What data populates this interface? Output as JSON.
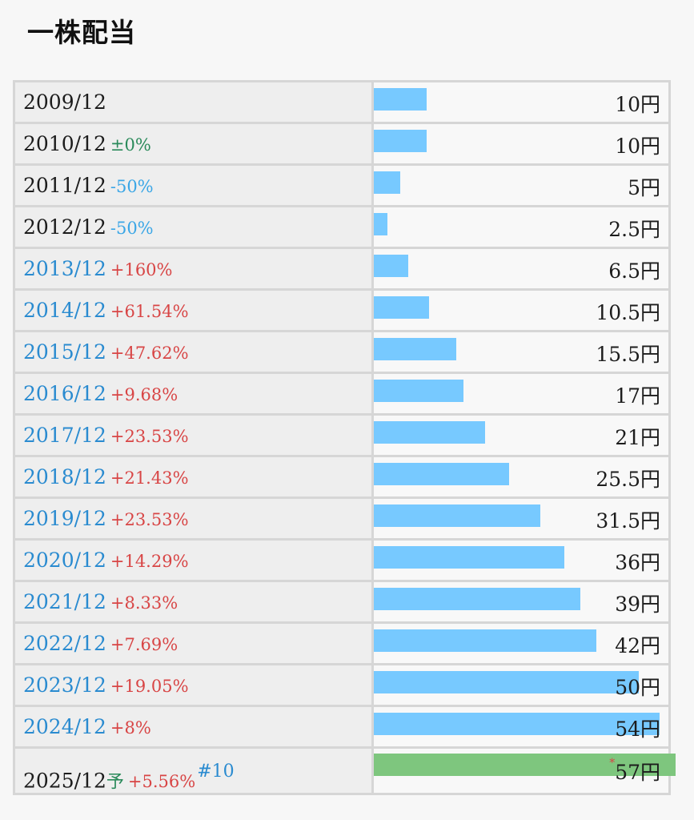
{
  "title": "一株配当",
  "colors": {
    "bar": "#77c9ff",
    "forecast_bar": "#7ec67e",
    "up": "#d84545",
    "down": "#3aa6e6",
    "flat": "#2a8a5a",
    "link": "#2a8bd0"
  },
  "chart_data": {
    "type": "bar",
    "orientation": "horizontal",
    "unit": "円",
    "categories": [
      "2009/12",
      "2010/12",
      "2011/12",
      "2012/12",
      "2013/12",
      "2014/12",
      "2015/12",
      "2016/12",
      "2017/12",
      "2018/12",
      "2019/12",
      "2020/12",
      "2021/12",
      "2022/12",
      "2023/12",
      "2024/12",
      "2025/12"
    ],
    "values": [
      10,
      10,
      5,
      2.5,
      6.5,
      10.5,
      15.5,
      17,
      21,
      25.5,
      31.5,
      36,
      39,
      42,
      50,
      54,
      57
    ],
    "changes": [
      "",
      "±0%",
      "-50%",
      "-50%",
      "+160%",
      "+61.54%",
      "+47.62%",
      "+9.68%",
      "+23.53%",
      "+21.43%",
      "+23.53%",
      "+14.29%",
      "+8.33%",
      "+7.69%",
      "+19.05%",
      "+8%",
      "+5.56%"
    ],
    "xlim": [
      0,
      57
    ]
  },
  "rows": [
    {
      "year": "2009/12",
      "change": "",
      "dir": "none",
      "link": false,
      "value": 10,
      "label": "10円"
    },
    {
      "year": "2010/12",
      "change": "±0%",
      "dir": "flat",
      "link": false,
      "value": 10,
      "label": "10円"
    },
    {
      "year": "2011/12",
      "change": "-50%",
      "dir": "down",
      "link": false,
      "value": 5,
      "label": "5円"
    },
    {
      "year": "2012/12",
      "change": "-50%",
      "dir": "down",
      "link": false,
      "value": 2.5,
      "label": "2.5円"
    },
    {
      "year": "2013/12",
      "change": "+160%",
      "dir": "up",
      "link": true,
      "value": 6.5,
      "label": "6.5円"
    },
    {
      "year": "2014/12",
      "change": "+61.54%",
      "dir": "up",
      "link": true,
      "value": 10.5,
      "label": "10.5円"
    },
    {
      "year": "2015/12",
      "change": "+47.62%",
      "dir": "up",
      "link": true,
      "value": 15.5,
      "label": "15.5円"
    },
    {
      "year": "2016/12",
      "change": "+9.68%",
      "dir": "up",
      "link": true,
      "value": 17,
      "label": "17円"
    },
    {
      "year": "2017/12",
      "change": "+23.53%",
      "dir": "up",
      "link": true,
      "value": 21,
      "label": "21円"
    },
    {
      "year": "2018/12",
      "change": "+21.43%",
      "dir": "up",
      "link": true,
      "value": 25.5,
      "label": "25.5円"
    },
    {
      "year": "2019/12",
      "change": "+23.53%",
      "dir": "up",
      "link": true,
      "value": 31.5,
      "label": "31.5円"
    },
    {
      "year": "2020/12",
      "change": "+14.29%",
      "dir": "up",
      "link": true,
      "value": 36,
      "label": "36円"
    },
    {
      "year": "2021/12",
      "change": "+8.33%",
      "dir": "up",
      "link": true,
      "value": 39,
      "label": "39円"
    },
    {
      "year": "2022/12",
      "change": "+7.69%",
      "dir": "up",
      "link": true,
      "value": 42,
      "label": "42円"
    },
    {
      "year": "2023/12",
      "change": "+19.05%",
      "dir": "up",
      "link": true,
      "value": 50,
      "label": "50円"
    },
    {
      "year": "2024/12",
      "change": "+8%",
      "dir": "up",
      "link": true,
      "value": 54,
      "label": "54円"
    }
  ],
  "forecast": {
    "year": "2025/12",
    "yo": "予",
    "change": "+5.56%",
    "note": "#10",
    "star": "*",
    "value": 57,
    "label": "57円"
  }
}
